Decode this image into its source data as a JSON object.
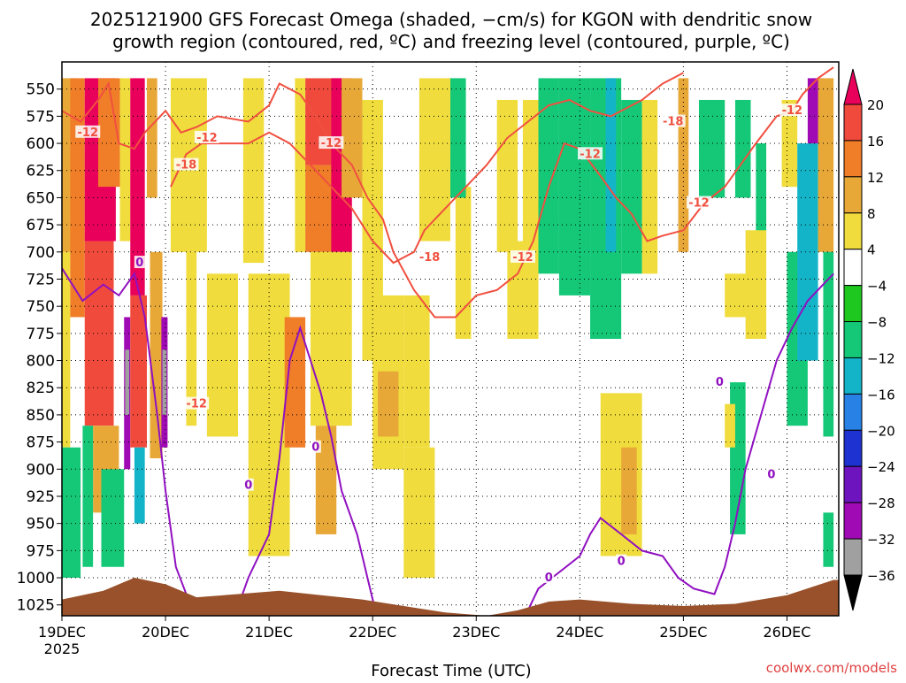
{
  "chart_data": {
    "type": "heatmap",
    "title_line1": "2025121900 GFS Forecast Omega (shaded, −cm/s) for KGON with dendritic snow",
    "title_line2": "growth region (contoured, red, ºC) and freezing level (contoured, purple, ºC)",
    "xlabel": "Forecast Time (UTC)",
    "credit": "coolwx.com/models",
    "x_unit": "days after 2025-12-19 00UTC",
    "xlim": [
      0,
      7.5
    ],
    "x_ticks": [
      {
        "label": "19DEC",
        "sub": "2025",
        "value": 0
      },
      {
        "label": "20DEC",
        "sub": "",
        "value": 1
      },
      {
        "label": "21DEC",
        "sub": "",
        "value": 2
      },
      {
        "label": "22DEC",
        "sub": "",
        "value": 3
      },
      {
        "label": "23DEC",
        "sub": "",
        "value": 4
      },
      {
        "label": "24DEC",
        "sub": "",
        "value": 5
      },
      {
        "label": "25DEC",
        "sub": "",
        "value": 6
      },
      {
        "label": "26DEC",
        "sub": "",
        "value": 7
      }
    ],
    "y_unit": "hPa",
    "ylim": [
      1035,
      525
    ],
    "y_ticks": [
      "550",
      "575",
      "600",
      "625",
      "650",
      "675",
      "700",
      "725",
      "750",
      "775",
      "800",
      "825",
      "850",
      "875",
      "900",
      "925",
      "950",
      "975",
      "1000",
      "1025"
    ],
    "colorbar": {
      "labels": [
        "20",
        "16",
        "12",
        "8",
        "4",
        "−4",
        "−8",
        "−12",
        "−16",
        "−20",
        "−24",
        "−28",
        "−32",
        "−36"
      ],
      "colors": [
        "#e8005a",
        "#f04a3c",
        "#f07d28",
        "#e8a838",
        "#f0dc3c",
        "#ffffff",
        "#1ec81e",
        "#14c878",
        "#14b4c8",
        "#2882e6",
        "#1e32d2",
        "#6e14be",
        "#a00ab4",
        "#a0a0a0",
        "#000000"
      ]
    },
    "omega_cells": [
      {
        "t0": 0.0,
        "t1": 0.12,
        "p0": 540,
        "p1": 700,
        "v": 10
      },
      {
        "t0": 0.0,
        "t1": 0.08,
        "p0": 700,
        "p1": 880,
        "v": 7
      },
      {
        "t0": 0.08,
        "t1": 0.22,
        "p0": 540,
        "p1": 760,
        "v": 14
      },
      {
        "t0": 0.22,
        "t1": 0.52,
        "p0": 540,
        "p1": 690,
        "v": 22
      },
      {
        "t0": 0.22,
        "t1": 0.5,
        "p0": 690,
        "p1": 860,
        "v": 17
      },
      {
        "t0": 0.3,
        "t1": 0.55,
        "p0": 860,
        "p1": 940,
        "v": 9
      },
      {
        "t0": 0.35,
        "t1": 0.56,
        "p0": 540,
        "p1": 640,
        "v": 14
      },
      {
        "t0": 0.56,
        "t1": 0.66,
        "p0": 540,
        "p1": 690,
        "v": 6
      },
      {
        "t0": 0.6,
        "t1": 0.66,
        "p0": 760,
        "p1": 900,
        "v": -30
      },
      {
        "t0": 0.61,
        "t1": 0.65,
        "p0": 790,
        "p1": 850,
        "v": -34
      },
      {
        "t0": 0.66,
        "t1": 0.8,
        "p0": 540,
        "p1": 740,
        "v": 20
      },
      {
        "t0": 0.66,
        "t1": 0.82,
        "p0": 740,
        "p1": 880,
        "v": 16
      },
      {
        "t0": 0.7,
        "t1": 0.8,
        "p0": 880,
        "p1": 950,
        "v": -14
      },
      {
        "t0": 0.82,
        "t1": 0.92,
        "p0": 540,
        "p1": 650,
        "v": 9
      },
      {
        "t0": 0.85,
        "t1": 0.97,
        "p0": 700,
        "p1": 890,
        "v": 11
      },
      {
        "t0": 0.96,
        "t1": 1.02,
        "p0": 760,
        "p1": 880,
        "v": -30
      },
      {
        "t0": 0.97,
        "t1": 1.01,
        "p0": 790,
        "p1": 850,
        "v": -34
      },
      {
        "t0": 1.05,
        "t1": 1.4,
        "p0": 540,
        "p1": 700,
        "v": 5
      },
      {
        "t0": 1.2,
        "t1": 1.3,
        "p0": 700,
        "p1": 860,
        "v": 5
      },
      {
        "t0": 0.0,
        "t1": 0.18,
        "p0": 880,
        "p1": 1000,
        "v": -8
      },
      {
        "t0": 0.2,
        "t1": 0.3,
        "p0": 860,
        "p1": 990,
        "v": -8
      },
      {
        "t0": 0.38,
        "t1": 0.6,
        "p0": 900,
        "p1": 990,
        "v": -8
      },
      {
        "t0": 1.4,
        "t1": 1.7,
        "p0": 720,
        "p1": 870,
        "v": 5
      },
      {
        "t0": 1.75,
        "t1": 1.95,
        "p0": 540,
        "p1": 710,
        "v": 6
      },
      {
        "t0": 1.8,
        "t1": 2.2,
        "p0": 720,
        "p1": 980,
        "v": 5
      },
      {
        "t0": 2.15,
        "t1": 2.35,
        "p0": 760,
        "p1": 880,
        "v": 12
      },
      {
        "t0": 2.25,
        "t1": 2.35,
        "p0": 540,
        "p1": 700,
        "v": 5
      },
      {
        "t0": 2.35,
        "t1": 2.7,
        "p0": 540,
        "p1": 620,
        "v": 16
      },
      {
        "t0": 2.35,
        "t1": 2.65,
        "p0": 620,
        "p1": 700,
        "v": 13
      },
      {
        "t0": 2.6,
        "t1": 2.8,
        "p0": 540,
        "p1": 700,
        "v": 22
      },
      {
        "t0": 2.7,
        "t1": 2.9,
        "p0": 540,
        "p1": 650,
        "v": 9
      },
      {
        "t0": 2.4,
        "t1": 2.8,
        "p0": 700,
        "p1": 860,
        "v": 5
      },
      {
        "t0": 2.45,
        "t1": 2.65,
        "p0": 860,
        "p1": 960,
        "v": 9
      },
      {
        "t0": 2.9,
        "t1": 3.1,
        "p0": 560,
        "p1": 800,
        "v": 5
      },
      {
        "t0": 3.0,
        "t1": 3.3,
        "p0": 740,
        "p1": 900,
        "v": 7
      },
      {
        "t0": 3.05,
        "t1": 3.25,
        "p0": 810,
        "p1": 870,
        "v": 10
      },
      {
        "t0": 3.3,
        "t1": 3.55,
        "p0": 740,
        "p1": 880,
        "v": 5
      },
      {
        "t0": 3.3,
        "t1": 3.6,
        "p0": 880,
        "p1": 1000,
        "v": 5
      },
      {
        "t0": 3.45,
        "t1": 3.75,
        "p0": 540,
        "p1": 690,
        "v": 5
      },
      {
        "t0": 3.8,
        "t1": 3.95,
        "p0": 640,
        "p1": 780,
        "v": 5
      },
      {
        "t0": 3.75,
        "t1": 3.9,
        "p0": 540,
        "p1": 650,
        "v": -8
      },
      {
        "t0": 4.2,
        "t1": 4.4,
        "p0": 560,
        "p1": 700,
        "v": 5
      },
      {
        "t0": 4.3,
        "t1": 4.6,
        "p0": 690,
        "p1": 780,
        "v": 5
      },
      {
        "t0": 4.45,
        "t1": 4.6,
        "p0": 560,
        "p1": 700,
        "v": 7
      },
      {
        "t0": 4.6,
        "t1": 4.8,
        "p0": 540,
        "p1": 720,
        "v": -8
      },
      {
        "t0": 4.8,
        "t1": 5.1,
        "p0": 540,
        "p1": 740,
        "v": -10
      },
      {
        "t0": 5.1,
        "t1": 5.4,
        "p0": 540,
        "p1": 780,
        "v": -8
      },
      {
        "t0": 5.25,
        "t1": 5.35,
        "p0": 540,
        "p1": 700,
        "v": -15
      },
      {
        "t0": 5.4,
        "t1": 5.6,
        "p0": 560,
        "p1": 720,
        "v": -8
      },
      {
        "t0": 5.6,
        "t1": 5.75,
        "p0": 560,
        "p1": 720,
        "v": 5
      },
      {
        "t0": 5.2,
        "t1": 5.6,
        "p0": 830,
        "p1": 980,
        "v": 5
      },
      {
        "t0": 5.4,
        "t1": 5.55,
        "p0": 880,
        "p1": 960,
        "v": 9
      },
      {
        "t0": 5.95,
        "t1": 6.05,
        "p0": 540,
        "p1": 700,
        "v": 9
      },
      {
        "t0": 6.15,
        "t1": 6.4,
        "p0": 560,
        "p1": 650,
        "v": -8
      },
      {
        "t0": 6.5,
        "t1": 6.65,
        "p0": 560,
        "p1": 650,
        "v": -8
      },
      {
        "t0": 6.4,
        "t1": 6.75,
        "p0": 720,
        "p1": 760,
        "v": 5
      },
      {
        "t0": 6.45,
        "t1": 6.6,
        "p0": 820,
        "p1": 960,
        "v": -8
      },
      {
        "t0": 6.4,
        "t1": 6.5,
        "p0": 840,
        "p1": 880,
        "v": 7
      },
      {
        "t0": 6.7,
        "t1": 6.8,
        "p0": 600,
        "p1": 700,
        "v": -8
      },
      {
        "t0": 6.6,
        "t1": 6.8,
        "p0": 680,
        "p1": 780,
        "v": 5
      },
      {
        "t0": 6.95,
        "t1": 7.1,
        "p0": 560,
        "p1": 640,
        "v": 5
      },
      {
        "t0": 7.0,
        "t1": 7.2,
        "p0": 700,
        "p1": 860,
        "v": -10
      },
      {
        "t0": 7.1,
        "t1": 7.3,
        "p0": 600,
        "p1": 800,
        "v": -12
      },
      {
        "t0": 7.2,
        "t1": 7.35,
        "p0": 540,
        "p1": 600,
        "v": -30
      },
      {
        "t0": 7.3,
        "t1": 7.45,
        "p0": 540,
        "p1": 700,
        "v": 9
      },
      {
        "t0": 7.35,
        "t1": 7.45,
        "p0": 700,
        "p1": 870,
        "v": -10
      },
      {
        "t0": 7.35,
        "t1": 7.45,
        "p0": 940,
        "p1": 990,
        "v": -8
      }
    ],
    "dgz_minus12": [
      [
        0.0,
        570
      ],
      [
        0.18,
        580
      ],
      [
        0.35,
        560
      ],
      [
        0.45,
        545
      ],
      [
        0.55,
        600
      ],
      [
        0.7,
        605
      ],
      [
        0.8,
        590
      ],
      [
        1.0,
        570
      ],
      [
        1.15,
        590
      ],
      [
        1.3,
        585
      ],
      [
        1.5,
        575
      ],
      [
        1.8,
        580
      ],
      [
        2.0,
        565
      ],
      [
        2.1,
        545
      ],
      [
        2.3,
        555
      ],
      [
        2.45,
        575
      ],
      [
        2.6,
        600
      ],
      [
        2.8,
        620
      ],
      [
        2.95,
        650
      ],
      [
        3.1,
        670
      ],
      [
        3.2,
        700
      ],
      [
        3.4,
        735
      ],
      [
        3.6,
        760
      ],
      [
        3.8,
        760
      ],
      [
        4.0,
        740
      ],
      [
        4.2,
        735
      ],
      [
        4.4,
        720
      ],
      [
        4.55,
        690
      ],
      [
        4.7,
        640
      ],
      [
        4.85,
        600
      ],
      [
        5.0,
        605
      ],
      [
        5.2,
        630
      ],
      [
        5.35,
        650
      ],
      [
        5.5,
        665
      ],
      [
        5.65,
        690
      ],
      [
        5.8,
        685
      ],
      [
        6.0,
        680
      ],
      [
        6.2,
        655
      ],
      [
        6.4,
        640
      ],
      [
        6.55,
        620
      ],
      [
        6.7,
        600
      ],
      [
        6.9,
        575
      ],
      [
        7.05,
        570
      ],
      [
        7.15,
        555
      ],
      [
        7.3,
        540
      ],
      [
        7.45,
        530
      ]
    ],
    "dgz_minus18": [
      [
        1.05,
        640
      ],
      [
        1.2,
        610
      ],
      [
        1.35,
        600
      ],
      [
        1.55,
        600
      ],
      [
        1.8,
        600
      ],
      [
        2.0,
        590
      ],
      [
        2.2,
        600
      ],
      [
        2.4,
        620
      ],
      [
        2.6,
        640
      ],
      [
        2.8,
        660
      ],
      [
        3.0,
        690
      ],
      [
        3.2,
        710
      ],
      [
        3.4,
        700
      ],
      [
        3.5,
        680
      ],
      [
        3.7,
        660
      ],
      [
        3.9,
        640
      ],
      [
        4.1,
        620
      ],
      [
        4.3,
        595
      ],
      [
        4.5,
        580
      ],
      [
        4.7,
        565
      ],
      [
        4.9,
        560
      ],
      [
        5.1,
        570
      ],
      [
        5.3,
        575
      ],
      [
        5.6,
        560
      ],
      [
        5.8,
        545
      ],
      [
        6.0,
        535
      ]
    ],
    "freezing_level": [
      [
        0.0,
        715
      ],
      [
        0.2,
        745
      ],
      [
        0.4,
        730
      ],
      [
        0.55,
        740
      ],
      [
        0.7,
        720
      ],
      [
        0.8,
        760
      ],
      [
        0.92,
        850
      ],
      [
        1.0,
        920
      ],
      [
        1.1,
        990
      ],
      [
        1.3,
        1040
      ]
    ],
    "freezing_level_2": [
      [
        1.65,
        1040
      ],
      [
        1.8,
        1000
      ],
      [
        2.0,
        960
      ],
      [
        2.1,
        890
      ],
      [
        2.2,
        800
      ],
      [
        2.3,
        770
      ],
      [
        2.4,
        800
      ],
      [
        2.5,
        830
      ],
      [
        2.6,
        870
      ],
      [
        2.7,
        920
      ],
      [
        2.85,
        960
      ],
      [
        2.95,
        1000
      ],
      [
        3.05,
        1040
      ]
    ],
    "freezing_level_3": [
      [
        4.45,
        1040
      ],
      [
        4.6,
        1010
      ],
      [
        4.8,
        995
      ],
      [
        5.0,
        980
      ],
      [
        5.1,
        960
      ],
      [
        5.2,
        945
      ],
      [
        5.4,
        960
      ],
      [
        5.6,
        975
      ],
      [
        5.8,
        980
      ],
      [
        5.95,
        1000
      ],
      [
        6.1,
        1010
      ],
      [
        6.3,
        1015
      ],
      [
        6.4,
        990
      ],
      [
        6.5,
        950
      ],
      [
        6.6,
        900
      ],
      [
        6.75,
        850
      ],
      [
        6.9,
        800
      ],
      [
        7.05,
        770
      ],
      [
        7.2,
        745
      ],
      [
        7.35,
        730
      ],
      [
        7.45,
        720
      ]
    ],
    "contour_labels": [
      {
        "text": "-12",
        "t": 0.25,
        "p": 590,
        "color": "red"
      },
      {
        "text": "-12",
        "t": 1.4,
        "p": 595,
        "color": "red"
      },
      {
        "text": "-18",
        "t": 1.2,
        "p": 620,
        "color": "red"
      },
      {
        "text": "-12",
        "t": 2.6,
        "p": 600,
        "color": "red"
      },
      {
        "text": "-18",
        "t": 3.55,
        "p": 705,
        "color": "red"
      },
      {
        "text": "-12",
        "t": 4.45,
        "p": 705,
        "color": "red"
      },
      {
        "text": "-12",
        "t": 5.1,
        "p": 610,
        "color": "red"
      },
      {
        "text": "-18",
        "t": 5.9,
        "p": 580,
        "color": "red"
      },
      {
        "text": "-12",
        "t": 6.15,
        "p": 655,
        "color": "red"
      },
      {
        "text": "-12",
        "t": 7.05,
        "p": 570,
        "color": "red"
      },
      {
        "text": "-12",
        "t": 1.3,
        "p": 840,
        "color": "red"
      },
      {
        "text": "0",
        "t": 0.75,
        "p": 710,
        "color": "purple"
      },
      {
        "text": "0",
        "t": 1.8,
        "p": 915,
        "color": "purple"
      },
      {
        "text": "0",
        "t": 2.45,
        "p": 880,
        "color": "purple"
      },
      {
        "text": "0",
        "t": 4.7,
        "p": 1000,
        "color": "purple"
      },
      {
        "text": "0",
        "t": 5.4,
        "p": 985,
        "color": "purple"
      },
      {
        "text": "0",
        "t": 6.35,
        "p": 820,
        "color": "purple"
      },
      {
        "text": "0",
        "t": 6.85,
        "p": 905,
        "color": "purple"
      }
    ],
    "terrain_top": [
      [
        0.0,
        1020
      ],
      [
        0.4,
        1012
      ],
      [
        0.7,
        1000
      ],
      [
        1.0,
        1006
      ],
      [
        1.3,
        1018
      ],
      [
        1.7,
        1015
      ],
      [
        2.1,
        1012
      ],
      [
        2.5,
        1016
      ],
      [
        2.9,
        1020
      ],
      [
        3.3,
        1026
      ],
      [
        3.7,
        1032
      ],
      [
        4.1,
        1035
      ],
      [
        4.4,
        1030
      ],
      [
        4.7,
        1022
      ],
      [
        5.0,
        1020
      ],
      [
        5.5,
        1024
      ],
      [
        6.0,
        1026
      ],
      [
        6.5,
        1024
      ],
      [
        7.0,
        1016
      ],
      [
        7.45,
        1002
      ]
    ]
  }
}
